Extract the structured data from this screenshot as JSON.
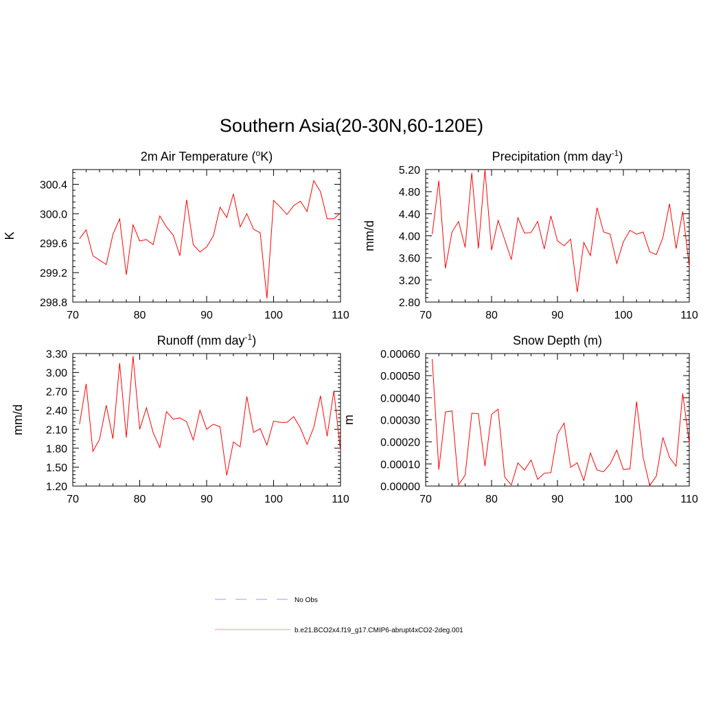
{
  "figure": {
    "title": "Southern Asia(20-30N,60-120E)"
  },
  "colors": {
    "model_line": "#ff0000",
    "obs_line": "#9999ee",
    "legend_model_line": "#ee9999"
  },
  "legend": {
    "items": [
      {
        "label": "No Obs",
        "style": "dashed",
        "color": "#9999ee"
      },
      {
        "label": "b.e21.BCO2x4.f19_g17.CMIP6-abrupt4xCO2-2deg.001",
        "style": "solid",
        "color": "#ee9999"
      }
    ]
  },
  "chart_data": [
    {
      "type": "line",
      "title": "2m Air Temperature (",
      "title_super": "o",
      "title_tail": "K)",
      "ylabel": "K",
      "xlim": [
        70,
        110
      ],
      "ylim": [
        298.8,
        300.6
      ],
      "xticks": [
        70,
        80,
        90,
        100,
        110
      ],
      "xtick_labels": [
        "70",
        "80",
        "90",
        "100",
        "110"
      ],
      "yticks": [
        298.8,
        299.2,
        299.6,
        300.0,
        300.4
      ],
      "ytick_labels": [
        "298.8",
        "299.2",
        "299.6",
        "300.0",
        "300.4"
      ],
      "x": [
        71,
        72,
        73,
        74,
        75,
        76,
        77,
        78,
        79,
        80,
        81,
        82,
        83,
        84,
        85,
        86,
        87,
        88,
        89,
        90,
        91,
        92,
        93,
        94,
        95,
        96,
        97,
        98,
        99,
        100,
        101,
        102,
        103,
        104,
        105,
        106,
        107,
        108,
        109,
        110
      ],
      "series": [
        {
          "values": [
            299.66,
            299.78,
            299.43,
            299.37,
            299.31,
            299.72,
            299.93,
            299.17,
            299.85,
            299.63,
            299.65,
            299.58,
            299.97,
            299.82,
            299.71,
            299.43,
            300.19,
            299.58,
            299.48,
            299.55,
            299.7,
            300.09,
            299.95,
            300.27,
            299.82,
            300.0,
            299.79,
            299.74,
            298.85,
            300.18,
            300.09,
            299.99,
            300.11,
            300.17,
            300.03,
            300.45,
            300.3,
            299.93,
            299.93,
            300.01
          ]
        }
      ]
    },
    {
      "type": "line",
      "title": "Precipitation (mm day",
      "title_super": "-1",
      "title_tail": ")",
      "ylabel": "mm/d",
      "xlim": [
        70,
        110
      ],
      "ylim": [
        2.8,
        5.2
      ],
      "xticks": [
        70,
        80,
        90,
        100,
        110
      ],
      "xtick_labels": [
        "70",
        "80",
        "90",
        "100",
        "110"
      ],
      "yticks": [
        2.8,
        3.2,
        3.6,
        4.0,
        4.4,
        4.8,
        5.2
      ],
      "ytick_labels": [
        "2.80",
        "3.20",
        "3.60",
        "4.00",
        "4.40",
        "4.80",
        "5.20"
      ],
      "x": [
        71,
        72,
        73,
        74,
        75,
        76,
        77,
        78,
        79,
        80,
        81,
        82,
        83,
        84,
        85,
        86,
        87,
        88,
        89,
        90,
        91,
        92,
        93,
        94,
        95,
        96,
        97,
        98,
        99,
        100,
        101,
        102,
        103,
        104,
        105,
        106,
        107,
        108,
        109,
        110
      ],
      "series": [
        {
          "values": [
            4.03,
            5.0,
            3.41,
            4.07,
            4.26,
            3.79,
            5.14,
            3.77,
            5.2,
            3.74,
            4.28,
            3.93,
            3.57,
            4.33,
            4.05,
            4.06,
            4.26,
            3.76,
            4.36,
            3.91,
            3.82,
            3.94,
            2.98,
            3.88,
            3.64,
            4.51,
            4.07,
            4.03,
            3.5,
            3.89,
            4.1,
            4.03,
            4.07,
            3.71,
            3.66,
            3.97,
            4.58,
            3.77,
            4.44,
            3.44
          ]
        }
      ]
    },
    {
      "type": "line",
      "title": "Runoff (mm day",
      "title_super": "-1",
      "title_tail": ")",
      "ylabel": "mm/d",
      "xlim": [
        70,
        110
      ],
      "ylim": [
        1.2,
        3.3
      ],
      "xticks": [
        70,
        80,
        90,
        100,
        110
      ],
      "xtick_labels": [
        "70",
        "80",
        "90",
        "100",
        "110"
      ],
      "yticks": [
        1.2,
        1.5,
        1.8,
        2.1,
        2.4,
        2.7,
        3.0,
        3.3
      ],
      "ytick_labels": [
        "1.20",
        "1.50",
        "1.80",
        "2.10",
        "2.40",
        "2.70",
        "3.00",
        "3.30"
      ],
      "x": [
        71,
        72,
        73,
        74,
        75,
        76,
        77,
        78,
        79,
        80,
        81,
        82,
        83,
        84,
        85,
        86,
        87,
        88,
        89,
        90,
        91,
        92,
        93,
        94,
        95,
        96,
        97,
        98,
        99,
        100,
        101,
        102,
        103,
        104,
        105,
        106,
        107,
        108,
        109,
        110
      ],
      "series": [
        {
          "values": [
            2.18,
            2.82,
            1.75,
            1.94,
            2.48,
            1.95,
            3.15,
            1.97,
            3.26,
            2.1,
            2.44,
            2.05,
            1.81,
            2.38,
            2.26,
            2.28,
            2.22,
            1.93,
            2.4,
            2.1,
            2.18,
            2.14,
            1.37,
            1.9,
            1.82,
            2.62,
            2.05,
            2.11,
            1.85,
            2.23,
            2.21,
            2.21,
            2.3,
            2.12,
            1.86,
            2.13,
            2.63,
            1.99,
            2.71,
            1.75
          ]
        }
      ]
    },
    {
      "type": "line",
      "title": "Snow Depth (m)",
      "ylabel": "m",
      "xlim": [
        70,
        110
      ],
      "ylim": [
        0,
        0.0006
      ],
      "xticks": [
        70,
        80,
        90,
        100,
        110
      ],
      "xtick_labels": [
        "70",
        "80",
        "90",
        "100",
        "110"
      ],
      "yticks": [
        0,
        0.0001,
        0.0002,
        0.0003,
        0.0004,
        0.0005,
        0.0006
      ],
      "ytick_labels": [
        "0.00000",
        "0.00010",
        "0.00020",
        "0.00030",
        "0.00040",
        "0.00050",
        "0.00060"
      ],
      "x": [
        71,
        72,
        73,
        74,
        75,
        76,
        77,
        78,
        79,
        80,
        81,
        82,
        83,
        84,
        85,
        86,
        87,
        88,
        89,
        90,
        91,
        92,
        93,
        94,
        95,
        96,
        97,
        98,
        99,
        100,
        101,
        102,
        103,
        104,
        105,
        106,
        107,
        108,
        109,
        110
      ],
      "series": [
        {
          "values": [
            0.000575,
            7.5e-05,
            0.000335,
            0.00034,
            5e-06,
            5e-05,
            0.00033,
            0.000328,
            9e-05,
            0.000325,
            0.000348,
            4e-05,
            5e-06,
            0.000105,
            7.2e-05,
            0.000118,
            3e-05,
            5.8e-05,
            6e-05,
            0.000235,
            0.000285,
            8.5e-05,
            0.000105,
            2.5e-05,
            0.00015,
            7.2e-05,
            6.5e-05,
            0.0001,
            0.000163,
            7.5e-05,
            7.8e-05,
            0.000383,
            0.00013,
            2e-06,
            4.5e-05,
            0.00022,
            0.00013,
            9e-05,
            0.00042,
            0.000195
          ]
        }
      ]
    }
  ]
}
